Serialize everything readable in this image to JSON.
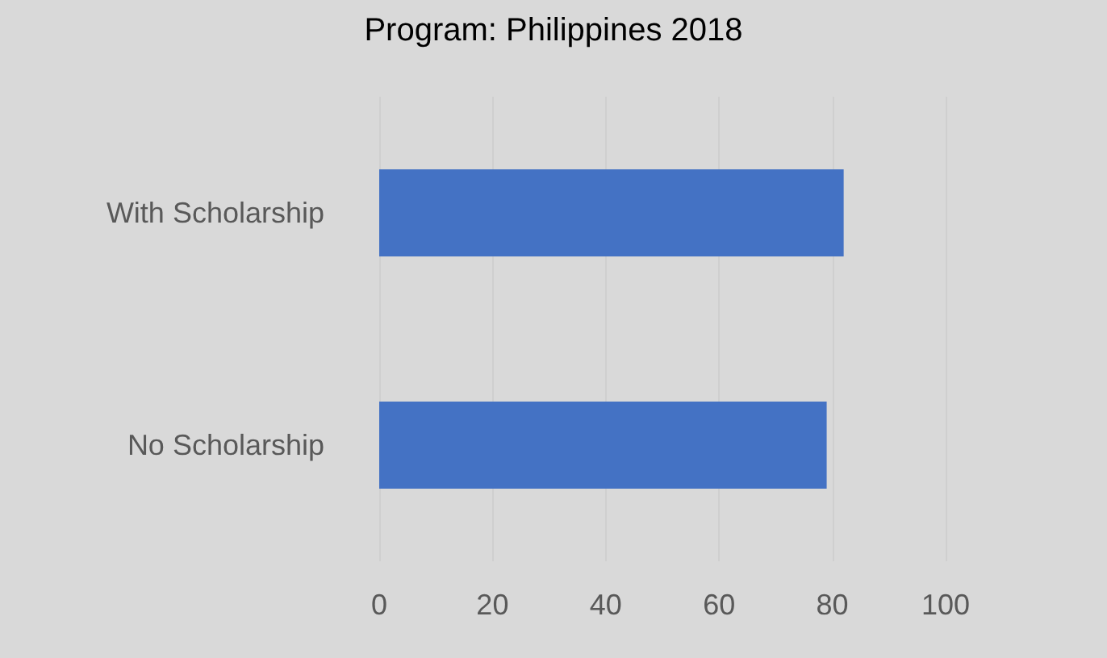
{
  "chart_data": {
    "type": "bar",
    "orientation": "horizontal",
    "title": "Program: Philippines 2018",
    "categories": [
      "With Scholarship",
      "No Scholarship"
    ],
    "values": [
      82,
      79
    ],
    "color": "#4472c4",
    "xlim": [
      0,
      100
    ],
    "xticks": [
      0,
      20,
      40,
      60,
      80,
      100
    ],
    "grid": "x"
  }
}
